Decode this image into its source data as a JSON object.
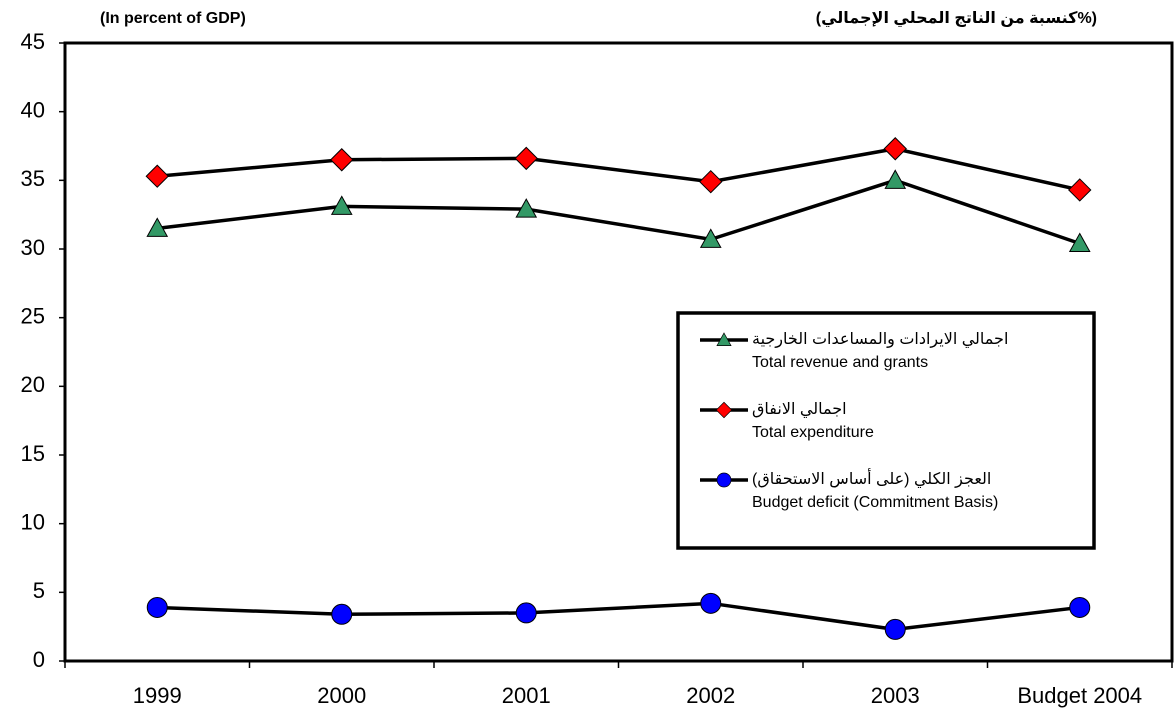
{
  "chart_data": {
    "type": "line",
    "title": "(In percent of GDP)",
    "title_ar": "(كنسبة من الناتج المحلي الإجمالي%)",
    "categories": [
      "1999",
      "2000",
      "2001",
      "2002",
      "2003",
      "Budget 2004"
    ],
    "series": [
      {
        "name": "Total revenue and grants",
        "name_ar": "اجمالي الايرادات والمساعدات الخارجية",
        "color": "#339966",
        "marker": "triangle",
        "values": [
          31.5,
          33.1,
          32.9,
          30.7,
          35.0,
          30.4
        ]
      },
      {
        "name": "Total expenditure",
        "name_ar": "اجمالي الانفاق",
        "color": "#ff0000",
        "marker": "diamond",
        "values": [
          35.3,
          36.5,
          36.6,
          34.9,
          37.3,
          34.3
        ]
      },
      {
        "name": "Budget deficit (Commitment Basis)",
        "name_ar": "العجز الكلي (على أساس الاستحقاق)",
        "color": "#0000ff",
        "marker": "circle",
        "values": [
          3.9,
          3.4,
          3.5,
          4.2,
          2.3,
          3.9
        ]
      }
    ],
    "ylim": [
      0,
      45
    ],
    "yticks": [
      0,
      5,
      10,
      15,
      20,
      25,
      30,
      35,
      40,
      45
    ],
    "grid": false
  }
}
